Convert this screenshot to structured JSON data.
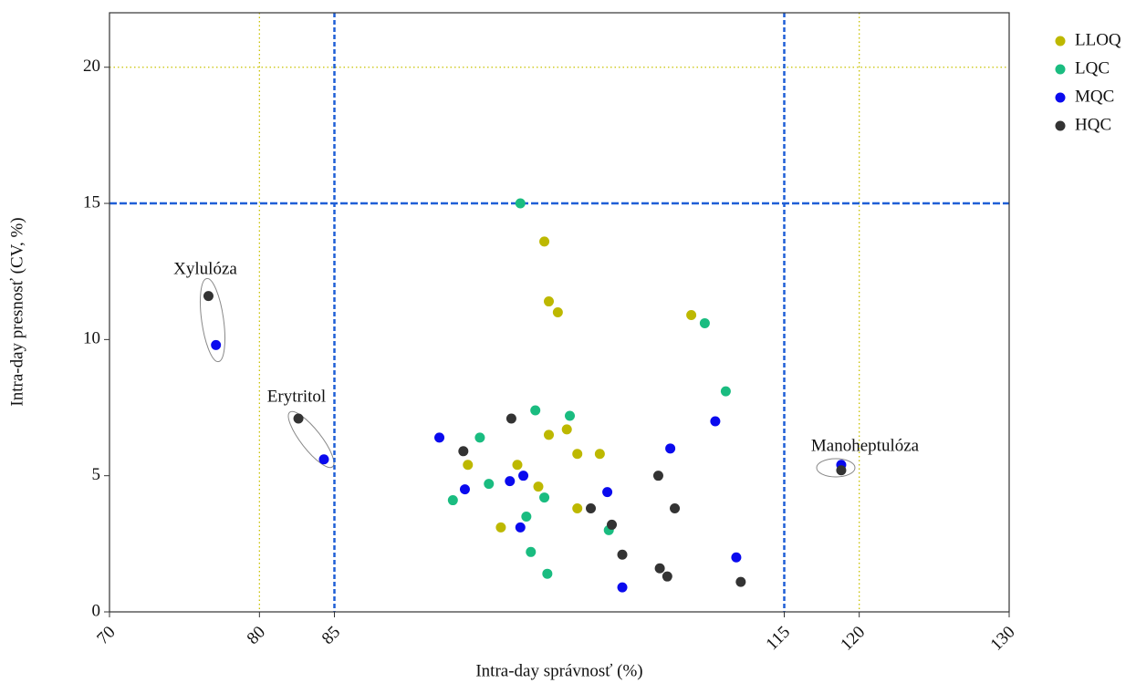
{
  "chart_data": {
    "type": "scatter",
    "x_label": "Intra-day správnosť (%)",
    "y_label": "Intra-day presnosť (CV, %)",
    "xlim": [
      70,
      130
    ],
    "ylim": [
      0,
      22
    ],
    "xticks": [
      70,
      80,
      85,
      115,
      120,
      130
    ],
    "yticks": [
      0,
      5,
      10,
      15,
      20
    ],
    "limit_lines": {
      "color": "#1f5fd6",
      "x": [
        85,
        115
      ],
      "y": [
        15
      ]
    },
    "guide_lines": {
      "color": "#c9c200",
      "x": [
        80,
        120
      ],
      "y": [
        20
      ]
    },
    "legend": "top-right",
    "series": [
      {
        "name": "LLOQ",
        "color": "#bdb800",
        "x": [
          99.0,
          99.3,
          99.9,
          108.8,
          100.5,
          99.3,
          93.9,
          97.2,
          101.2,
          102.7,
          98.6,
          101.2,
          96.1
        ],
        "values": [
          13.6,
          11.4,
          11.0,
          10.9,
          6.7,
          6.5,
          5.4,
          5.4,
          5.8,
          5.8,
          4.6,
          3.8,
          3.1
        ]
      },
      {
        "name": "LQC",
        "color": "#1abc80",
        "x": [
          97.4,
          109.7,
          111.1,
          98.4,
          100.7,
          94.7,
          95.3,
          92.9,
          99.0,
          97.8,
          103.3,
          98.1,
          99.2
        ],
        "values": [
          15.0,
          10.6,
          8.1,
          7.4,
          7.2,
          6.4,
          4.7,
          4.1,
          4.2,
          3.5,
          3.0,
          2.2,
          1.4
        ]
      },
      {
        "name": "MQC",
        "color": "#0a0aee",
        "x": [
          77.1,
          84.3,
          92.0,
          110.4,
          107.4,
          118.8,
          97.6,
          96.7,
          93.7,
          103.2,
          97.4,
          111.8,
          104.2
        ],
        "values": [
          9.8,
          5.6,
          6.4,
          7.0,
          6.0,
          5.4,
          5.0,
          4.8,
          4.5,
          4.4,
          3.1,
          2.0,
          0.9
        ]
      },
      {
        "name": "HQC",
        "color": "#333333",
        "x": [
          76.6,
          82.6,
          96.8,
          93.6,
          106.6,
          118.8,
          102.1,
          107.7,
          103.5,
          104.2,
          106.7,
          107.2,
          112.1
        ],
        "values": [
          11.6,
          7.1,
          7.1,
          5.9,
          5.0,
          5.2,
          3.8,
          3.8,
          3.2,
          2.1,
          1.6,
          1.3,
          1.1
        ]
      }
    ],
    "annotations": [
      "Xylulóza",
      "Erytritol",
      "Manoheptulóza"
    ]
  }
}
